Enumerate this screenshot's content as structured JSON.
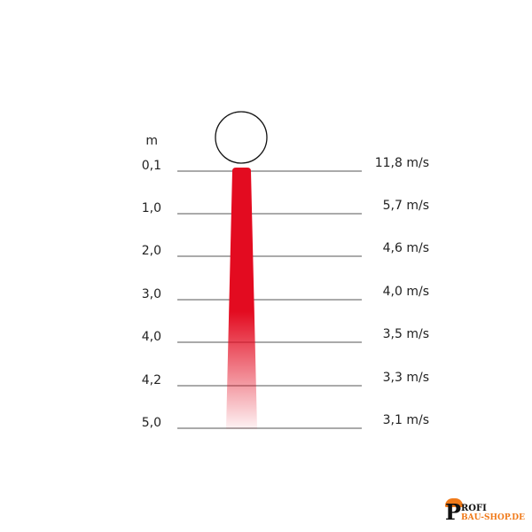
{
  "unit_label": "m",
  "rows": [
    {
      "height": "0,1",
      "speed": "11,8 m/s"
    },
    {
      "height": "1,0",
      "speed": "5,7 m/s"
    },
    {
      "height": "2,0",
      "speed": "4,6 m/s"
    },
    {
      "height": "3,0",
      "speed": "4,0 m/s"
    },
    {
      "height": "4,0",
      "speed": "3,5 m/s"
    },
    {
      "height": "4,2",
      "speed": "3,3 m/s"
    },
    {
      "height": "5,0",
      "speed": "3,1 m/s"
    }
  ],
  "colors": {
    "beam": "#e30b20",
    "line": "#555555",
    "logo_orange": "#f07a1a"
  },
  "logo": {
    "letter": "P",
    "line1": "ROFI",
    "line2": "BAU-SHOP.DE"
  }
}
